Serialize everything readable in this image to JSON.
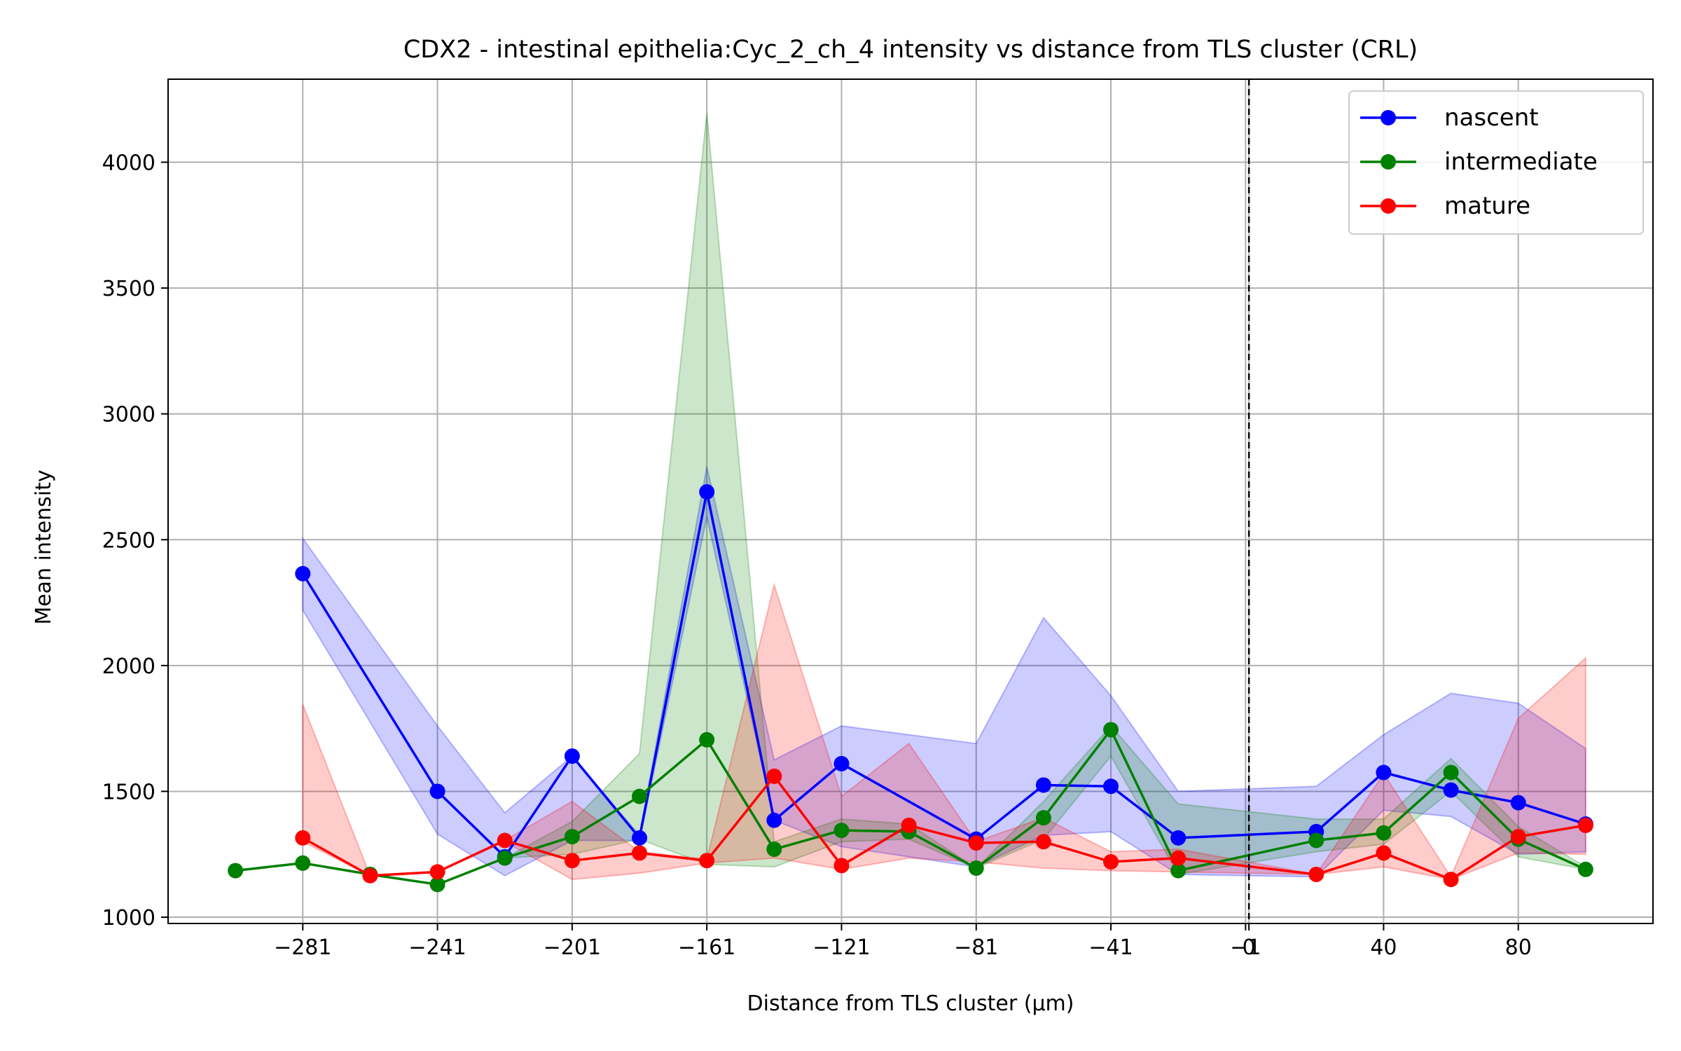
{
  "chart_data": {
    "type": "line",
    "title": "CDX2 - intestinal epithelia:Cyc_2_ch_4 intensity vs distance from TLS cluster (CRL)",
    "xlabel": "Distance from TLS cluster (μm)",
    "ylabel": "Mean intensity",
    "xlim": [
      -321,
      120
    ],
    "ylim": [
      975,
      4330
    ],
    "xticks": [
      -281,
      -241,
      -201,
      -161,
      -121,
      -81,
      -41,
      -1,
      0,
      40,
      80
    ],
    "xtick_labels": [
      "−281",
      "−241",
      "−201",
      "−161",
      "−121",
      "−81",
      "−41",
      "−1",
      "0",
      "40",
      "80"
    ],
    "yticks": [
      1000,
      1500,
      2000,
      2500,
      3000,
      3500,
      4000
    ],
    "ytick_labels": [
      "1000",
      "1500",
      "2000",
      "2500",
      "3000",
      "3500",
      "4000"
    ],
    "grid": true,
    "vline": {
      "x": 0,
      "style": "dashed",
      "color": "#000000"
    },
    "legend_position": "top-right",
    "series": [
      {
        "name": "nascent",
        "color": "#0000ff",
        "x": [
          -281,
          -241,
          -221,
          -201,
          -181,
          -161,
          -141,
          -121,
          -81,
          -61,
          -41,
          -21,
          20,
          40,
          60,
          80,
          100
        ],
        "y": [
          2365,
          1500,
          1240,
          1640,
          1315,
          2690,
          1385,
          1610,
          1310,
          1525,
          1520,
          1315,
          1340,
          1575,
          1505,
          1455,
          1370
        ],
        "lower": [
          2220,
          1330,
          1165,
          1305,
          1305,
          2590,
          1385,
          1280,
          1200,
          1325,
          1340,
          1170,
          1160,
          1425,
          1400,
          1250,
          1260
        ],
        "upper": [
          2505,
          1760,
          1415,
          1640,
          1325,
          2790,
          1625,
          1760,
          1690,
          2190,
          1880,
          1500,
          1520,
          1725,
          1890,
          1850,
          1670
        ]
      },
      {
        "name": "intermediate",
        "color": "#008000",
        "x": [
          -301,
          -281,
          -261,
          -241,
          -221,
          -201,
          -181,
          -161,
          -141,
          -121,
          -101,
          -81,
          -61,
          -41,
          -21,
          20,
          40,
          60,
          80,
          100
        ],
        "y": [
          1185,
          1215,
          1170,
          1130,
          1235,
          1320,
          1480,
          1705,
          1270,
          1345,
          1340,
          1195,
          1395,
          1745,
          1185,
          1305,
          1335,
          1575,
          1310,
          1190
        ],
        "lower": [
          1185,
          1215,
          1170,
          1130,
          1235,
          1250,
          1310,
          1210,
          1200,
          1300,
          1310,
          1195,
          1310,
          1640,
          1170,
          1260,
          1290,
          1500,
          1240,
          1190
        ],
        "upper": [
          1185,
          1215,
          1170,
          1130,
          1235,
          1380,
          1650,
          4195,
          1300,
          1390,
          1370,
          1195,
          1460,
          1760,
          1450,
          1390,
          1390,
          1630,
          1360,
          1200
        ]
      },
      {
        "name": "mature",
        "color": "#ff0000",
        "x": [
          -281,
          -261,
          -241,
          -221,
          -201,
          -181,
          -161,
          -141,
          -121,
          -101,
          -81,
          -61,
          -41,
          -21,
          20,
          40,
          60,
          80,
          100
        ],
        "y": [
          1315,
          1165,
          1180,
          1305,
          1225,
          1255,
          1225,
          1560,
          1205,
          1365,
          1295,
          1300,
          1220,
          1235,
          1170,
          1255,
          1150,
          1320,
          1365
        ],
        "lower": [
          1300,
          1165,
          1180,
          1300,
          1150,
          1175,
          1215,
          1235,
          1190,
          1235,
          1220,
          1195,
          1185,
          1180,
          1170,
          1200,
          1150,
          1255,
          1250
        ],
        "upper": [
          1845,
          1165,
          1180,
          1305,
          1460,
          1260,
          1230,
          2320,
          1480,
          1690,
          1300,
          1395,
          1260,
          1270,
          1170,
          1570,
          1160,
          1790,
          2030
        ]
      }
    ]
  }
}
